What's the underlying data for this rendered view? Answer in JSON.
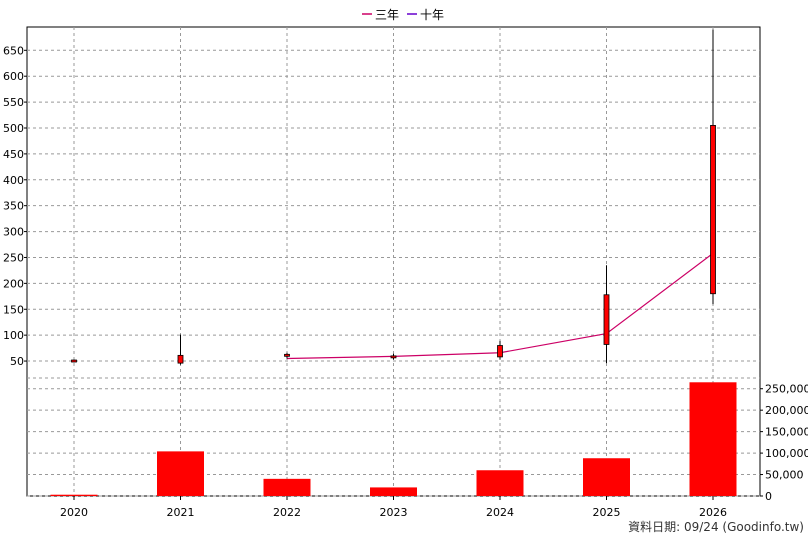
{
  "footer_text": "資料日期: 09/24  (Goodinfo.tw)",
  "legend": [
    {
      "label": "三年",
      "color": "#cc0066"
    },
    {
      "label": "十年",
      "color": "#6600cc"
    }
  ],
  "chart_data": [
    {
      "type": "candlestick",
      "categories": [
        "2020",
        "2021",
        "2022",
        "2023",
        "2024",
        "2025",
        "2026"
      ],
      "ylim": [
        25,
        695
      ],
      "yticks": [
        50,
        100,
        150,
        200,
        250,
        300,
        350,
        400,
        450,
        500,
        550,
        600,
        650
      ],
      "up_color": "#ff0000",
      "down_color": "#00aa00",
      "candles": [
        {
          "open": 49,
          "close": 52,
          "high": 53,
          "low": 48
        },
        {
          "open": 46,
          "close": 61,
          "high": 101,
          "low": 43
        },
        {
          "open": 60,
          "close": 63,
          "high": 66,
          "low": 55
        },
        {
          "open": 57,
          "close": 60,
          "high": 64,
          "low": 53
        },
        {
          "open": 58,
          "close": 80,
          "high": 89,
          "low": 53
        },
        {
          "open": 82,
          "close": 178,
          "high": 235,
          "low": 46
        },
        {
          "open": 180,
          "close": 505,
          "high": 690,
          "low": 160
        }
      ],
      "series": [
        {
          "name": "三年",
          "color": "#cc0066",
          "values": [
            null,
            null,
            55,
            59,
            66,
            103,
            258
          ]
        }
      ],
      "grid": true
    },
    {
      "type": "bar",
      "categories": [
        "2020",
        "2021",
        "2022",
        "2023",
        "2024",
        "2025",
        "2026"
      ],
      "values": [
        3000,
        104000,
        40000,
        20000,
        60000,
        88000,
        265000
      ],
      "color": "#ff0000",
      "ylim": [
        0,
        275000
      ],
      "yticks": [
        0,
        50000,
        100000,
        150000,
        200000,
        250000
      ],
      "ytick_labels": [
        "0",
        "50,000",
        "100,000",
        "150,000",
        "200,000",
        "250,000"
      ],
      "grid": true
    }
  ]
}
